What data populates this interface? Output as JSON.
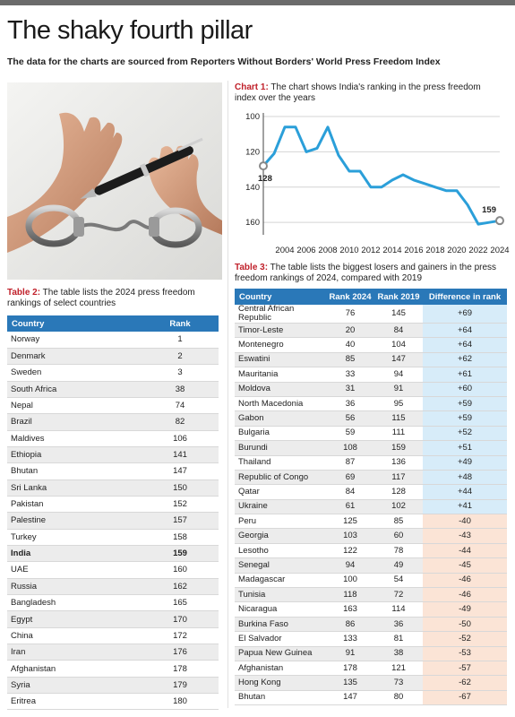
{
  "title": "The shaky fourth pillar",
  "subtitle": "The data for the charts are sourced from Reporters Without Borders' World Press Freedom Index",
  "photo": {
    "icon": "handcuffed-hands-with-pen-photo"
  },
  "chart1": {
    "label": "Chart 1:",
    "caption": "The chart shows India's ranking in the press freedom index over the years"
  },
  "table2": {
    "label": "Table 2:",
    "caption": "The table lists the 2024 press freedom rankings of select countries",
    "headers": [
      "Country",
      "Rank"
    ],
    "highlight": "India",
    "rows": [
      [
        "Norway",
        "1"
      ],
      [
        "Denmark",
        "2"
      ],
      [
        "Sweden",
        "3"
      ],
      [
        "South Africa",
        "38"
      ],
      [
        "Nepal",
        "74"
      ],
      [
        "Brazil",
        "82"
      ],
      [
        "Maldives",
        "106"
      ],
      [
        "Ethiopia",
        "141"
      ],
      [
        "Bhutan",
        "147"
      ],
      [
        "Sri Lanka",
        "150"
      ],
      [
        "Pakistan",
        "152"
      ],
      [
        "Palestine",
        "157"
      ],
      [
        "Turkey",
        "158"
      ],
      [
        "India",
        "159"
      ],
      [
        "UAE",
        "160"
      ],
      [
        "Russia",
        "162"
      ],
      [
        "Bangladesh",
        "165"
      ],
      [
        "Egypt",
        "170"
      ],
      [
        "China",
        "172"
      ],
      [
        "Iran",
        "176"
      ],
      [
        "Afghanistan",
        "178"
      ],
      [
        "Syria",
        "179"
      ],
      [
        "Eritrea",
        "180"
      ]
    ]
  },
  "table3": {
    "label": "Table 3:",
    "caption": "The table lists the biggest losers and gainers in the press freedom rankings of 2024, compared with 2019",
    "headers": [
      "Country",
      "Rank 2024",
      "Rank 2019",
      "Difference in rank"
    ],
    "rows": [
      [
        "Central African Republic",
        "76",
        "145",
        "+69"
      ],
      [
        "Timor-Leste",
        "20",
        "84",
        "+64"
      ],
      [
        "Montenegro",
        "40",
        "104",
        "+64"
      ],
      [
        "Eswatini",
        "85",
        "147",
        "+62"
      ],
      [
        "Mauritania",
        "33",
        "94",
        "+61"
      ],
      [
        "Moldova",
        "31",
        "91",
        "+60"
      ],
      [
        "North Macedonia",
        "36",
        "95",
        "+59"
      ],
      [
        "Gabon",
        "56",
        "115",
        "+59"
      ],
      [
        "Bulgaria",
        "59",
        "111",
        "+52"
      ],
      [
        "Burundi",
        "108",
        "159",
        "+51"
      ],
      [
        "Thailand",
        "87",
        "136",
        "+49"
      ],
      [
        "Republic of Congo",
        "69",
        "117",
        "+48"
      ],
      [
        "Qatar",
        "84",
        "128",
        "+44"
      ],
      [
        "Ukraine",
        "61",
        "102",
        "+41"
      ],
      [
        "Peru",
        "125",
        "85",
        "-40"
      ],
      [
        "Georgia",
        "103",
        "60",
        "-43"
      ],
      [
        "Lesotho",
        "122",
        "78",
        "-44"
      ],
      [
        "Senegal",
        "94",
        "49",
        "-45"
      ],
      [
        "Madagascar",
        "100",
        "54",
        "-46"
      ],
      [
        "Tunisia",
        "118",
        "72",
        "-46"
      ],
      [
        "Nicaragua",
        "163",
        "114",
        "-49"
      ],
      [
        "Burkina Faso",
        "86",
        "36",
        "-50"
      ],
      [
        "El Salvador",
        "133",
        "81",
        "-52"
      ],
      [
        "Papua New Guinea",
        "91",
        "38",
        "-53"
      ],
      [
        "Afghanistan",
        "178",
        "121",
        "-57"
      ],
      [
        "Hong Kong",
        "135",
        "73",
        "-62"
      ],
      [
        "Bhutan",
        "147",
        "80",
        "-67"
      ]
    ],
    "colors": {
      "gain": "#d7ecf9",
      "loss": "#fbe4d6"
    }
  },
  "colors": {
    "accent": "#c0202a",
    "header": "#2a78b8",
    "line": "#2b9fd9"
  },
  "chart_data": [
    {
      "type": "line",
      "series": [
        {
          "x": [
            2002,
            2003,
            2004,
            2005,
            2006,
            2007,
            2008,
            2009,
            2010,
            2011,
            2012,
            2013,
            2014,
            2015,
            2016,
            2017,
            2018,
            2019,
            2020,
            2021,
            2022,
            2023,
            2024
          ],
          "values": [
            128,
            121,
            106,
            106,
            120,
            118,
            106,
            122,
            131,
            131,
            140,
            140,
            136,
            133,
            136,
            138,
            140,
            142,
            142,
            150,
            161,
            160,
            159
          ]
        }
      ],
      "xticks": [
        "2004",
        "2006",
        "2008",
        "2010",
        "2012",
        "2014",
        "2016",
        "2018",
        "2020",
        "2022",
        "2024"
      ],
      "yticks": [
        "100",
        "120",
        "140",
        "160"
      ],
      "ylim": [
        100,
        165
      ],
      "yreversed": true,
      "grid": "horizontal",
      "annotations": [
        "128",
        "159"
      ]
    },
    {
      "type": "table",
      "columns": [
        "Country",
        "Rank"
      ],
      "source": "table2"
    },
    {
      "type": "table",
      "columns": [
        "Country",
        "Rank 2024",
        "Rank 2019",
        "Difference in rank"
      ],
      "source": "table3"
    }
  ]
}
